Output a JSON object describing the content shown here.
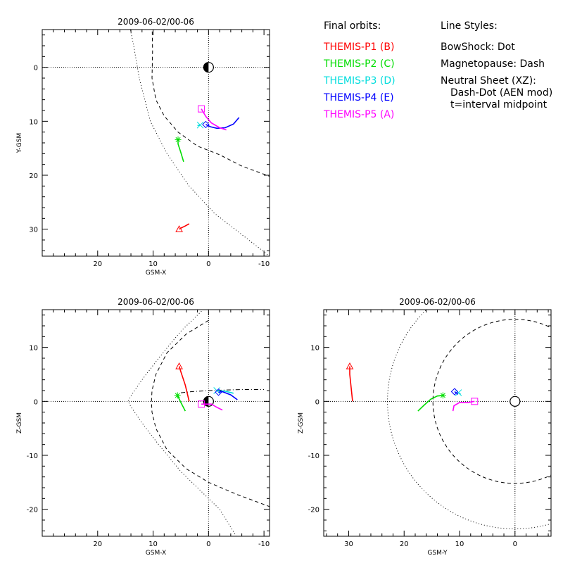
{
  "legend": {
    "heading_orbits": "Final orbits:",
    "heading_styles": "Line Styles:",
    "orbit_entries": [
      {
        "label": "THEMIS-P1 (B)",
        "color": "#ff0000"
      },
      {
        "label": "THEMIS-P2 (C)",
        "color": "#00dd00"
      },
      {
        "label": "THEMIS-P3 (D)",
        "color": "#00dddd"
      },
      {
        "label": "THEMIS-P4 (E)",
        "color": "#0000ff"
      },
      {
        "label": "THEMIS-P5 (A)",
        "color": "#ff00ff"
      }
    ],
    "style_entries": [
      "BowShock: Dot",
      "Magnetopause: Dash",
      "Neutral Sheet (XZ):",
      "Dash-Dot (AEN mod)",
      "t=interval midpoint"
    ]
  },
  "colors": {
    "P1": "#ff0000",
    "P2": "#00dd00",
    "P3": "#00dddd",
    "P4": "#0000ff",
    "P5": "#ff00ff",
    "axes": "#000000"
  },
  "chart_data": [
    {
      "id": "xy",
      "type": "line",
      "title": "2009-06-02/00-06",
      "xlabel": "GSM-X",
      "ylabel": "Y-GSM",
      "xlim": [
        30,
        -11
      ],
      "ylim": [
        -7,
        35
      ],
      "y_axis_inverted": true,
      "xticks": [
        20,
        10,
        0,
        -10
      ],
      "yticks": [
        0,
        10,
        20,
        30
      ],
      "earth_marker": "half-filled circle at origin",
      "boundaries": [
        {
          "name": "BowShock",
          "style": "dot",
          "points": [
            [
              14.5,
              -9
            ],
            [
              13.5,
              -4
            ],
            [
              12.5,
              2
            ],
            [
              10.5,
              10
            ],
            [
              7.5,
              16
            ],
            [
              3.5,
              22
            ],
            [
              -1,
              27
            ],
            [
              -6,
              31
            ],
            [
              -11,
              35
            ]
          ]
        },
        {
          "name": "Magnetopause",
          "style": "dash",
          "points": [
            [
              10.2,
              -9
            ],
            [
              10.1,
              -3
            ],
            [
              10.2,
              2
            ],
            [
              9.5,
              6
            ],
            [
              8,
              9
            ],
            [
              5.5,
              12
            ],
            [
              2,
              14.6
            ],
            [
              -2,
              16.2
            ],
            [
              -6,
              18.3
            ],
            [
              -11,
              20.2
            ]
          ]
        }
      ],
      "series": [
        {
          "name": "THEMIS-P1 (B)",
          "color_key": "P1",
          "marker": "triangle",
          "points": [
            [
              3.5,
              29
            ],
            [
              4.2,
              29.4
            ],
            [
              5,
              29.8
            ],
            [
              5.3,
              30
            ]
          ]
        },
        {
          "name": "THEMIS-P2 (C)",
          "color_key": "P2",
          "marker": "asterisk",
          "points": [
            [
              4.5,
              17.5
            ],
            [
              5,
              15.8
            ],
            [
              5.5,
              14.2
            ],
            [
              5.5,
              13.4
            ]
          ]
        },
        {
          "name": "THEMIS-P3 (D)",
          "color_key": "P3",
          "marker": "x",
          "points": [
            [
              2,
              10.8
            ],
            [
              1.5,
              10.7
            ]
          ]
        },
        {
          "name": "THEMIS-P4 (E)",
          "color_key": "P4",
          "marker": "diamond",
          "points": [
            [
              -5.5,
              9.3
            ],
            [
              -4.5,
              10.5
            ],
            [
              -3,
              11.2
            ],
            [
              -1.5,
              11.3
            ],
            [
              -0.3,
              11
            ],
            [
              0.5,
              10.6
            ]
          ]
        },
        {
          "name": "THEMIS-P5 (A)",
          "color_key": "P5",
          "marker": "square",
          "points": [
            [
              -3.2,
              11.6
            ],
            [
              -2,
              11.2
            ],
            [
              -0.5,
              10.3
            ],
            [
              0.5,
              9.1
            ],
            [
              1.3,
              7.7
            ]
          ]
        }
      ]
    },
    {
      "id": "xz",
      "type": "line",
      "title": "2009-06-02/00-06",
      "xlabel": "GSM-X",
      "ylabel": "Z-GSM",
      "xlim": [
        30,
        -11
      ],
      "ylim": [
        -25,
        17
      ],
      "xticks": [
        20,
        10,
        0,
        -10
      ],
      "yticks": [
        10,
        0,
        -10,
        -20
      ],
      "earth_marker": "half-filled circle at origin",
      "boundaries": [
        {
          "name": "BowShock",
          "style": "dot",
          "points": [
            [
              -2,
              20
            ],
            [
              1,
              17
            ],
            [
              5,
              13
            ],
            [
              9,
              8
            ],
            [
              12,
              4
            ],
            [
              14,
              1
            ],
            [
              14.5,
              0
            ],
            [
              14,
              -1
            ],
            [
              12,
              -4
            ],
            [
              9,
              -8
            ],
            [
              5,
              -13
            ],
            [
              1,
              -17
            ],
            [
              -2,
              -20
            ],
            [
              -5,
              -25
            ]
          ]
        },
        {
          "name": "Magnetopause",
          "style": "dash",
          "points": [
            [
              0,
              15
            ],
            [
              4,
              12.5
            ],
            [
              7.5,
              9
            ],
            [
              9.5,
              5
            ],
            [
              10.2,
              2
            ],
            [
              10.3,
              0
            ],
            [
              10.2,
              -2
            ],
            [
              9.5,
              -5
            ],
            [
              7.5,
              -9
            ],
            [
              4,
              -12.5
            ],
            [
              0,
              -15
            ],
            [
              -5,
              -17.2
            ],
            [
              -11,
              -19.5
            ]
          ]
        },
        {
          "name": "Neutral Sheet",
          "style": "dashdot",
          "points": [
            [
              5,
              1.6
            ],
            [
              3,
              1.8
            ],
            [
              0,
              2.0
            ],
            [
              -3,
              2.1
            ],
            [
              -6,
              2.2
            ],
            [
              -10,
              2.2
            ]
          ]
        }
      ],
      "series": [
        {
          "name": "THEMIS-P1 (B)",
          "color_key": "P1",
          "marker": "triangle",
          "points": [
            [
              3.5,
              0
            ],
            [
              4.2,
              3
            ],
            [
              5,
              5.5
            ],
            [
              5.3,
              6.5
            ]
          ]
        },
        {
          "name": "THEMIS-P2 (C)",
          "color_key": "P2",
          "marker": "asterisk",
          "points": [
            [
              4.2,
              -1.8
            ],
            [
              5,
              -0.2
            ],
            [
              5.6,
              1.1
            ]
          ]
        },
        {
          "name": "THEMIS-P3 (D)",
          "color_key": "P3",
          "marker": "x",
          "points": [
            [
              -4.5,
              1.5
            ],
            [
              -3,
              1.9
            ],
            [
              -1.5,
              2
            ]
          ]
        },
        {
          "name": "THEMIS-P4 (E)",
          "color_key": "P4",
          "marker": "diamond",
          "points": [
            [
              -5.2,
              0.3
            ],
            [
              -4,
              1.2
            ],
            [
              -2.5,
              1.8
            ],
            [
              -1.8,
              1.7
            ]
          ]
        },
        {
          "name": "THEMIS-P5 (A)",
          "color_key": "P5",
          "marker": "square",
          "points": [
            [
              -2.5,
              -1.6
            ],
            [
              -1.5,
              -1.1
            ],
            [
              -0.5,
              -0.5
            ],
            [
              1.3,
              -0.5
            ]
          ]
        }
      ]
    },
    {
      "id": "yz",
      "type": "line",
      "title": "2009-06-02/00-06",
      "xlabel": "GSM-Y",
      "ylabel": "Z-GSM",
      "xlim": [
        34.5,
        -6.5
      ],
      "ylim": [
        -25,
        17
      ],
      "xticks": [
        30,
        20,
        10,
        0
      ],
      "yticks": [
        10,
        0,
        -10,
        -20
      ],
      "earth_marker": "open circle at origin",
      "boundaries": [
        {
          "name": "BowShock",
          "style": "circle-dot",
          "radius": 23
        },
        {
          "name": "Magnetopause",
          "style": "circle-dash",
          "radius": 14.8
        }
      ],
      "series": [
        {
          "name": "THEMIS-P1 (B)",
          "color_key": "P1",
          "marker": "triangle",
          "points": [
            [
              29.3,
              0
            ],
            [
              29.6,
              3
            ],
            [
              29.8,
              5
            ],
            [
              29.8,
              6.5
            ]
          ]
        },
        {
          "name": "THEMIS-P2 (C)",
          "color_key": "P2",
          "marker": "asterisk",
          "points": [
            [
              17.5,
              -1.8
            ],
            [
              16.5,
              -0.8
            ],
            [
              15.2,
              0.4
            ],
            [
              14,
              1
            ],
            [
              13,
              1.1
            ]
          ]
        },
        {
          "name": "THEMIS-P3 (D)",
          "color_key": "P3",
          "marker": "x",
          "points": [
            [
              9.8,
              1.3
            ],
            [
              10.2,
              1.6
            ]
          ]
        },
        {
          "name": "THEMIS-P4 (E)",
          "color_key": "P4",
          "marker": "diamond",
          "points": [
            [
              10.3,
              1.3
            ],
            [
              10.6,
              1.6
            ],
            [
              10.9,
              1.8
            ]
          ]
        },
        {
          "name": "THEMIS-P5 (A)",
          "color_key": "P5",
          "marker": "square",
          "points": [
            [
              11.2,
              -1.8
            ],
            [
              11,
              -0.8
            ],
            [
              10,
              -0.2
            ],
            [
              8.5,
              -0.2
            ],
            [
              7.3,
              0
            ]
          ]
        }
      ]
    }
  ]
}
